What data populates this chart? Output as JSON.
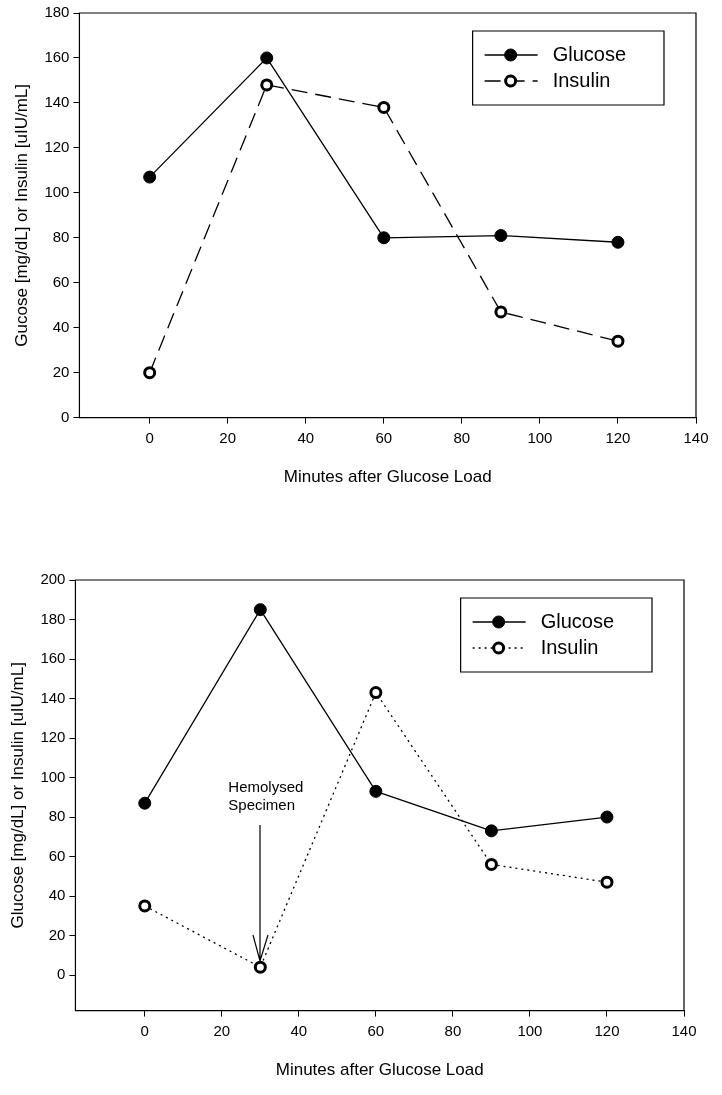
{
  "chart_data": [
    {
      "type": "line",
      "xlabel": "Minutes after Glucose Load",
      "ylabel": "Gucose [mg/dL] or Insulin [uIU/mL]",
      "x": [
        0,
        30,
        60,
        90,
        120
      ],
      "series": [
        {
          "name": "Glucose",
          "color": "#000000",
          "values": [
            107,
            160,
            80,
            81,
            78
          ],
          "marker": "circle",
          "line_style": "solid"
        },
        {
          "name": "Insulin",
          "color": "#000000",
          "values": [
            20,
            148,
            138,
            47,
            34
          ],
          "marker": "circle",
          "line_style": "dashed"
        }
      ],
      "xlim": [
        -18,
        140
      ],
      "xticks": [
        0,
        20,
        40,
        60,
        80,
        100,
        120,
        140
      ],
      "ylim": [
        0,
        180
      ],
      "yticks": [
        0,
        20,
        40,
        60,
        80,
        100,
        120,
        140,
        160,
        180
      ],
      "grid": false,
      "legend": "top right"
    },
    {
      "type": "line",
      "xlabel": "Minutes after Glucose Load",
      "ylabel": "Glucose [mg/dL] or Insulin [uIU/mL]",
      "x": [
        0,
        30,
        60,
        90,
        120
      ],
      "series": [
        {
          "name": "Glucose",
          "color": "#000000",
          "values": [
            87,
            185,
            93,
            73,
            80
          ],
          "marker": "circle",
          "line_style": "solid"
        },
        {
          "name": "Insulin",
          "color": "#000000",
          "values": [
            35,
            4,
            143,
            56,
            47
          ],
          "marker": "circle",
          "line_style": "dotted"
        }
      ],
      "annotations": [
        {
          "text": "Hemolysed Specimen",
          "x": 30,
          "y": 4
        }
      ],
      "xlim": [
        -18,
        140
      ],
      "xticks": [
        0,
        20,
        40,
        60,
        80,
        100,
        120,
        140
      ],
      "ylim": [
        -18,
        200
      ],
      "yticks": [
        0,
        20,
        40,
        60,
        80,
        100,
        120,
        140,
        160,
        180,
        200
      ],
      "grid": false,
      "legend": "top right"
    }
  ]
}
